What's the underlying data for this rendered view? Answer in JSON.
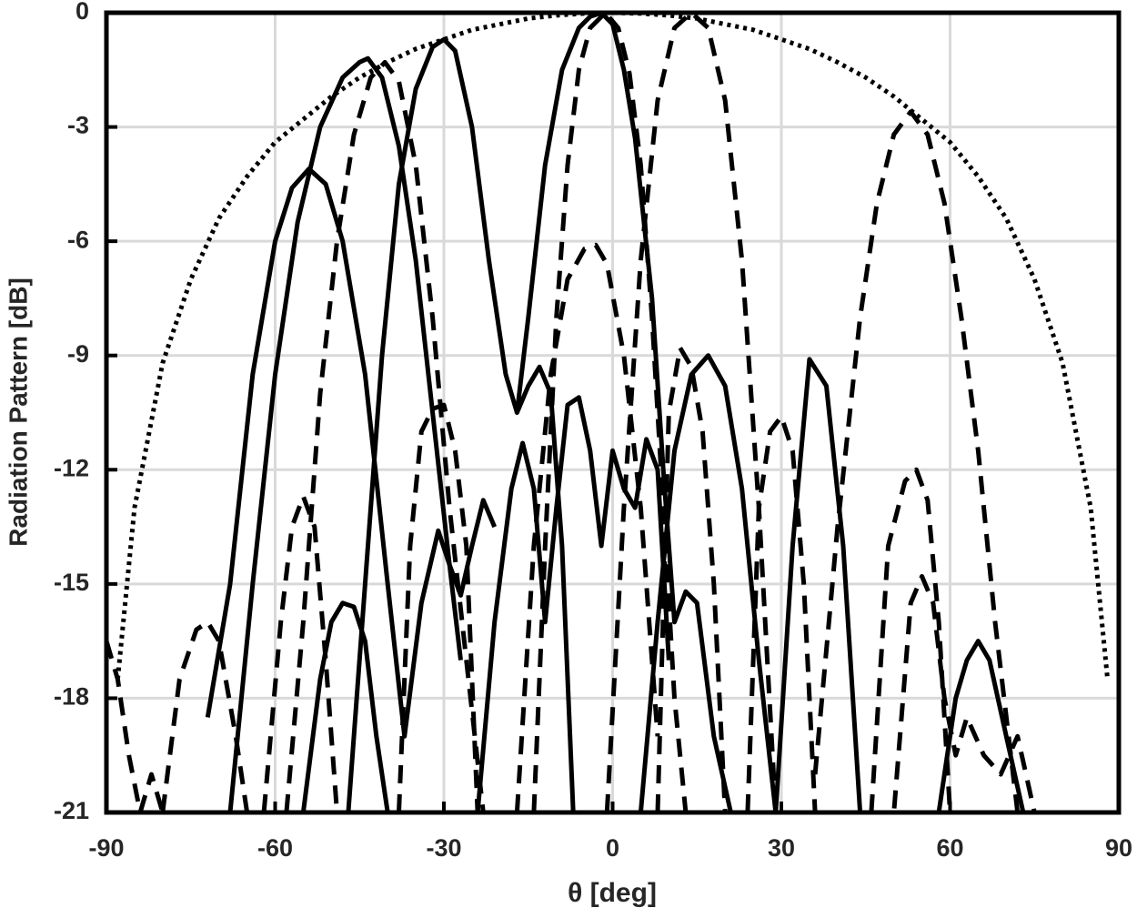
{
  "chart_data": {
    "type": "line",
    "xlabel": "θ [deg]",
    "ylabel": "Radiation Pattern [dB]",
    "xlim": [
      -90,
      90
    ],
    "xticks": [
      -90,
      -60,
      -30,
      0,
      30,
      60,
      90
    ],
    "ylim": [
      -21,
      0
    ],
    "yticks": [
      -21,
      -18,
      -15,
      -12,
      -9,
      -6,
      -3,
      0
    ],
    "grid": true,
    "series": [
      {
        "style": "dotted",
        "color": "#000000",
        "x": [
          -88,
          -85,
          -80,
          -75,
          -70,
          -65,
          -60,
          -55,
          -50,
          -45,
          -40,
          -35,
          -30,
          -25,
          -20,
          -15,
          -10,
          -5,
          0,
          5,
          10,
          15,
          20,
          25,
          30,
          35,
          40,
          45,
          50,
          55,
          60,
          65,
          70,
          75,
          80,
          85,
          88
        ],
        "values": [
          -17.5,
          -13,
          -9.2,
          -7,
          -5.4,
          -4.3,
          -3.4,
          -2.8,
          -2.2,
          -1.7,
          -1.3,
          -0.95,
          -0.7,
          -0.45,
          -0.3,
          -0.15,
          -0.07,
          -0.02,
          0,
          -0.02,
          -0.07,
          -0.15,
          -0.3,
          -0.45,
          -0.7,
          -0.95,
          -1.3,
          -1.7,
          -2.2,
          -2.8,
          -3.4,
          -4.3,
          -5.4,
          -7,
          -9.2,
          -13,
          -17.5
        ]
      },
      {
        "style": "solid",
        "color": "#000000",
        "x": [
          -72,
          -68,
          -64,
          -60,
          -57,
          -54,
          -51,
          -48,
          -44,
          -40,
          -37,
          -34,
          -31,
          -29,
          -27
        ],
        "values": [
          -18.5,
          -15,
          -9.5,
          -6,
          -4.6,
          -4.1,
          -4.5,
          -6,
          -9.5,
          -15,
          -19,
          -15.5,
          -13.6,
          -14.5,
          -17
        ]
      },
      {
        "style": "solid",
        "color": "#000000",
        "x": [
          -68,
          -64,
          -60,
          -56,
          -52,
          -48,
          -45,
          -43.5,
          -41,
          -38,
          -35,
          -32,
          -29,
          -27,
          -25,
          -23,
          -21
        ],
        "values": [
          -21,
          -15,
          -9.5,
          -5.5,
          -3,
          -1.7,
          -1.3,
          -1.2,
          -1.7,
          -3.5,
          -6.5,
          -10.5,
          -14.5,
          -15.3,
          -14,
          -12.8,
          -13.5
        ]
      },
      {
        "style": "solid",
        "color": "#000000",
        "x": [
          -47,
          -44,
          -41,
          -38,
          -35,
          -32,
          -30,
          -28,
          -25,
          -22,
          -19,
          -17,
          -15,
          -13,
          -11,
          -9,
          -7
        ],
        "values": [
          -21,
          -15,
          -9,
          -4.5,
          -2,
          -0.9,
          -0.7,
          -1,
          -3,
          -6.5,
          -9.5,
          -10.5,
          -9.8,
          -9.3,
          -10,
          -14,
          -21
        ]
      },
      {
        "style": "solid",
        "color": "#000000",
        "x": [
          -17,
          -15,
          -12,
          -9,
          -6,
          -4,
          -2,
          0,
          2,
          4,
          7,
          9,
          11,
          13,
          15,
          18,
          21
        ],
        "values": [
          -10.5,
          -8,
          -4,
          -1.5,
          -0.4,
          -0.1,
          0,
          -0.3,
          -1.5,
          -3.3,
          -7.5,
          -12,
          -16,
          -15.2,
          -15.5,
          -19,
          -21
        ]
      },
      {
        "style": "solid",
        "color": "#000000",
        "x": [
          5,
          8,
          11,
          14,
          17,
          20,
          23,
          26,
          29,
          32,
          35,
          38,
          41,
          44
        ],
        "values": [
          -21,
          -16,
          -11.5,
          -9.5,
          -9,
          -9.8,
          -12.5,
          -17,
          -21,
          -14,
          -9.1,
          -9.8,
          -14,
          -21
        ]
      },
      {
        "style": "solid",
        "color": "#000000",
        "x": [
          -24,
          -21,
          -18,
          -16,
          -14,
          -12,
          -10,
          -8,
          -6,
          -4,
          -2,
          0,
          2,
          4,
          6,
          8,
          10
        ],
        "values": [
          -21,
          -16,
          -12.5,
          -11.3,
          -12.5,
          -16,
          -13,
          -10.3,
          -10.1,
          -11.5,
          -14,
          -11.5,
          -12.5,
          -13,
          -11.2,
          -12,
          -17
        ]
      },
      {
        "style": "solid",
        "color": "#000000",
        "x": [
          -55,
          -52,
          -50,
          -48,
          -46,
          -44,
          -42,
          -40
        ],
        "values": [
          -21,
          -17.5,
          -16,
          -15.5,
          -15.6,
          -16.5,
          -19,
          -21
        ]
      },
      {
        "style": "solid",
        "color": "#000000",
        "x": [
          58,
          61,
          63,
          65,
          67,
          70,
          73
        ],
        "values": [
          -21,
          -18,
          -17,
          -16.5,
          -17,
          -19,
          -21
        ]
      },
      {
        "style": "dashed",
        "color": "#000000",
        "x": [
          -58,
          -55,
          -52,
          -49,
          -46,
          -43,
          -40.5,
          -38,
          -35,
          -32,
          -29,
          -26,
          -23
        ],
        "values": [
          -21,
          -16,
          -10,
          -6,
          -3.2,
          -1.7,
          -1.3,
          -1.8,
          -4,
          -8,
          -13,
          -17,
          -21
        ]
      },
      {
        "style": "dashed",
        "color": "#000000",
        "x": [
          -14,
          -12,
          -10,
          -8,
          -6,
          -4,
          -1.3,
          1,
          3,
          5,
          7,
          9,
          11,
          13
        ],
        "values": [
          -21,
          -14,
          -8,
          -4,
          -1.5,
          -0.4,
          0,
          -0.4,
          -1.6,
          -4,
          -8,
          -13,
          -18,
          -21
        ]
      },
      {
        "style": "dashed",
        "color": "#000000",
        "x": [
          -1,
          2,
          5,
          8,
          11,
          14,
          17,
          20,
          23,
          26,
          29
        ],
        "values": [
          -21,
          -13,
          -6.5,
          -2.3,
          -0.4,
          0,
          -0.4,
          -2.3,
          -6.5,
          -13,
          -21
        ]
      },
      {
        "style": "dashed",
        "color": "#000000",
        "x": [
          36,
          40,
          44,
          47,
          50,
          53,
          56,
          59,
          62,
          65,
          68,
          72
        ],
        "values": [
          -20,
          -13.5,
          -8,
          -5,
          -3.2,
          -2.6,
          -3.2,
          -5,
          -8,
          -11.5,
          -16,
          -21
        ]
      },
      {
        "style": "dashed",
        "color": "#000000",
        "x": [
          -17,
          -14,
          -11,
          -8,
          -5,
          -3,
          -1,
          2,
          5,
          8
        ],
        "values": [
          -21,
          -14,
          -9.5,
          -7,
          -6.2,
          -6.1,
          -6.6,
          -9,
          -13,
          -19
        ]
      },
      {
        "style": "dashed",
        "color": "#000000",
        "x": [
          -80,
          -77,
          -74,
          -72,
          -70,
          -67,
          -65,
          -64,
          -38,
          -36,
          -34,
          -32,
          -30,
          -28,
          -26,
          -24,
          -23,
          46,
          49,
          52,
          54,
          56,
          58,
          60
        ],
        "values": [
          -21,
          -17.5,
          -16.2,
          -16,
          -16.5,
          -19,
          -21,
          null,
          -21,
          -14,
          -11,
          -10.4,
          -10.3,
          -11.5,
          -14,
          -21,
          null,
          -21,
          -14,
          -12.3,
          -12,
          -12.8,
          -16,
          -21
        ]
      },
      {
        "style": "dashed",
        "color": "#000000",
        "x": [
          -62,
          -59,
          -57,
          -55,
          -53,
          -51,
          -49,
          -48,
          8,
          10,
          12,
          14,
          16,
          18,
          20,
          21,
          24,
          26,
          28,
          30,
          32,
          34,
          36
        ],
        "values": [
          -21,
          -16,
          -13.5,
          -12.7,
          -13.5,
          -17,
          -21,
          null,
          -21,
          -10.5,
          -8.8,
          -9.3,
          -11,
          -15,
          -21,
          null,
          -21,
          -13,
          -11,
          -10.6,
          -11.5,
          -15,
          -21
        ]
      },
      {
        "style": "dashed",
        "color": "#000000",
        "x": [
          -90,
          -88,
          -86,
          -84,
          -82,
          -80,
          50,
          53,
          55,
          57,
          59,
          61,
          63,
          66,
          69,
          72,
          75
        ],
        "values": [
          -16.5,
          -17.5,
          -19.5,
          -21,
          -20,
          -21,
          -21,
          -15.5,
          -14.8,
          -15.5,
          -18,
          -19.5,
          -18.5,
          -19.5,
          -20,
          -19,
          -21
        ]
      }
    ]
  }
}
